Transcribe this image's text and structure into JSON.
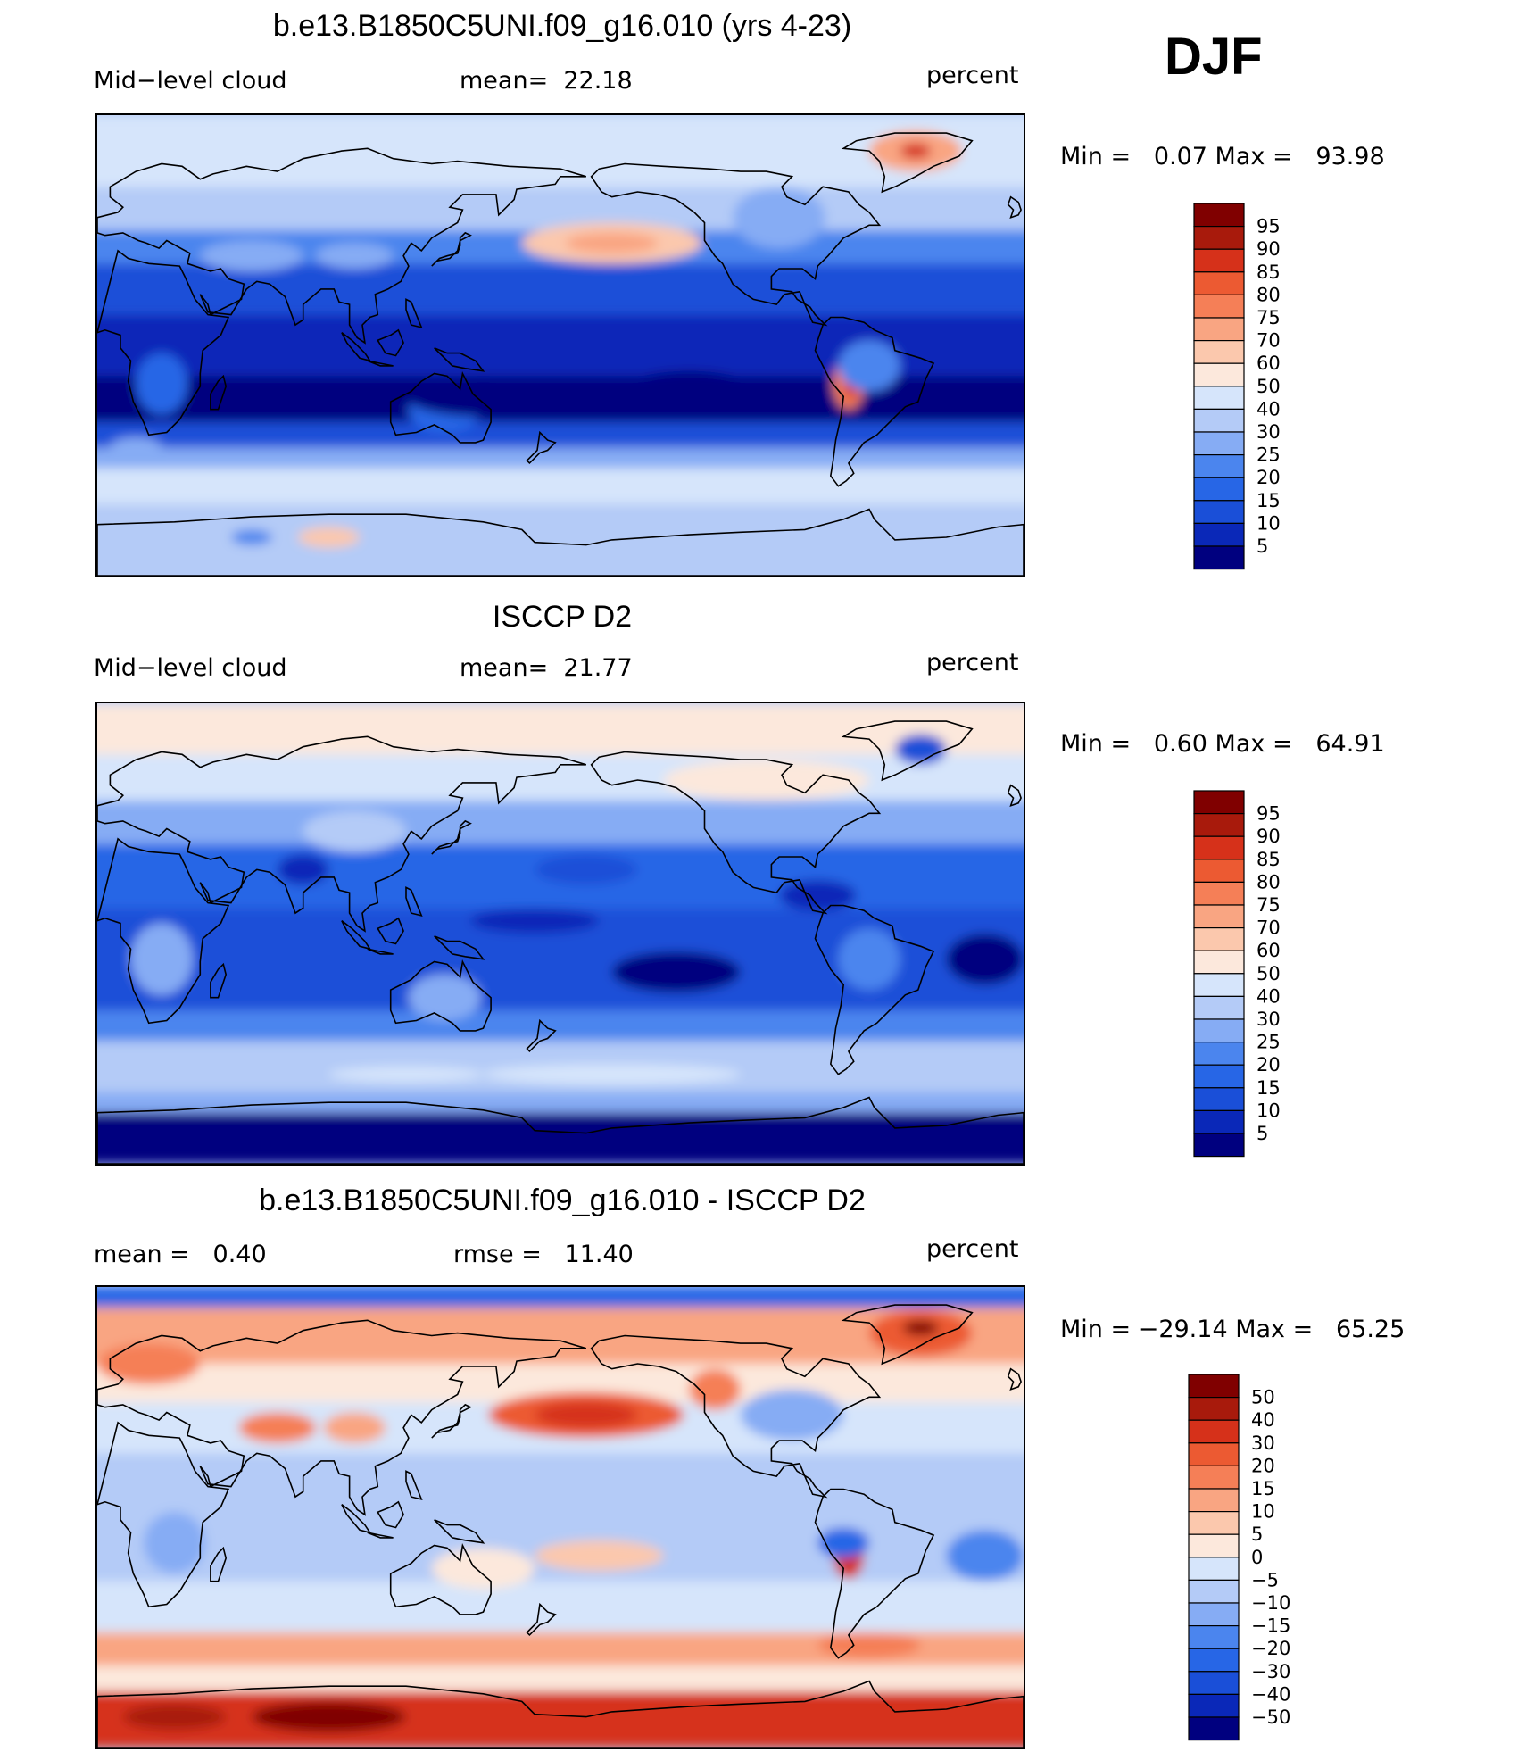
{
  "season": "DJF",
  "colors": {
    "abs_scale": [
      "#00007f",
      "#0a28b8",
      "#1a4fd8",
      "#2766e6",
      "#4b85ee",
      "#86acf4",
      "#b4cbf7",
      "#d6e5fb",
      "#fce8dc",
      "#fbc8ad",
      "#f9a582",
      "#f57f57",
      "#ec5a32",
      "#d6311a",
      "#a81a0c",
      "#800000"
    ],
    "diff_scale": [
      "#00007f",
      "#0a28b8",
      "#1a4fd8",
      "#2766e6",
      "#4b85ee",
      "#86acf4",
      "#b4cbf7",
      "#d6e5fb",
      "#fce8dc",
      "#fbc8ad",
      "#f9a582",
      "#f57f57",
      "#ec5a32",
      "#d6311a",
      "#a81a0c",
      "#800000"
    ]
  },
  "panels": [
    {
      "title": "b.e13.B1850C5UNI.f09_g16.010 (yrs 4-23)",
      "left_label": "Mid−level cloud",
      "center_label": "mean=  22.18",
      "right_label": "percent",
      "minmax": "Min =   0.07 Max =   93.98"
    },
    {
      "title": "ISCCP D2",
      "left_label": "Mid−level cloud",
      "center_label": "mean=  21.77",
      "right_label": "percent",
      "minmax": "Min =   0.60 Max =   64.91"
    },
    {
      "title": "b.e13.B1850C5UNI.f09_g16.010 - ISCCP D2",
      "left_label": "mean =   0.40",
      "center_label": "rmse =   11.40",
      "right_label": "percent",
      "minmax": "Min = −29.14 Max =   65.25"
    }
  ],
  "chart_data": [
    {
      "type": "heatmap",
      "title": "b.e13.B1850C5UNI.f09_g16.010 (yrs 4-23)",
      "variable": "Mid−level cloud",
      "units": "percent",
      "mean": 22.18,
      "min": 0.07,
      "max": 93.98,
      "contour_levels": [
        "95",
        "90",
        "85",
        "80",
        "75",
        "70",
        "60",
        "50",
        "40",
        "30",
        "25",
        "20",
        "15",
        "10",
        "5"
      ],
      "features": [
        {
          "region": "tropical oceans",
          "value": 5
        },
        {
          "region": "southern ocean",
          "value": 40
        },
        {
          "region": "north pacific",
          "value": 55
        },
        {
          "region": "greenland",
          "value": 75
        },
        {
          "region": "andes",
          "value": 90
        }
      ]
    },
    {
      "type": "heatmap",
      "title": "ISCCP D2",
      "variable": "Mid−level cloud",
      "units": "percent",
      "mean": 21.77,
      "min": 0.6,
      "max": 64.91,
      "contour_levels": [
        "95",
        "90",
        "85",
        "80",
        "75",
        "70",
        "60",
        "50",
        "40",
        "30",
        "25",
        "20",
        "15",
        "10",
        "5"
      ],
      "features": [
        {
          "region": "tropical oceans",
          "value": 12
        },
        {
          "region": "southern ocean",
          "value": 35
        },
        {
          "region": "antarctica",
          "value": 5
        },
        {
          "region": "arctic",
          "value": 55
        }
      ]
    },
    {
      "type": "heatmap",
      "title": "b.e13.B1850C5UNI.f09_g16.010 - ISCCP D2",
      "units": "percent",
      "mean": 0.4,
      "rmse": 11.4,
      "min": -29.14,
      "max": 65.25,
      "contour_levels": [
        "50",
        "40",
        "30",
        "20",
        "15",
        "10",
        "5",
        "0",
        "−5",
        "−10",
        "−15",
        "−20",
        "−30",
        "−40",
        "−50"
      ],
      "features": [
        {
          "region": "north pacific",
          "value": 30
        },
        {
          "region": "greenland",
          "value": 50
        },
        {
          "region": "antarctica",
          "value": 40
        },
        {
          "region": "southern ocean",
          "value": 15
        },
        {
          "region": "tropics",
          "value": -5
        }
      ]
    }
  ]
}
